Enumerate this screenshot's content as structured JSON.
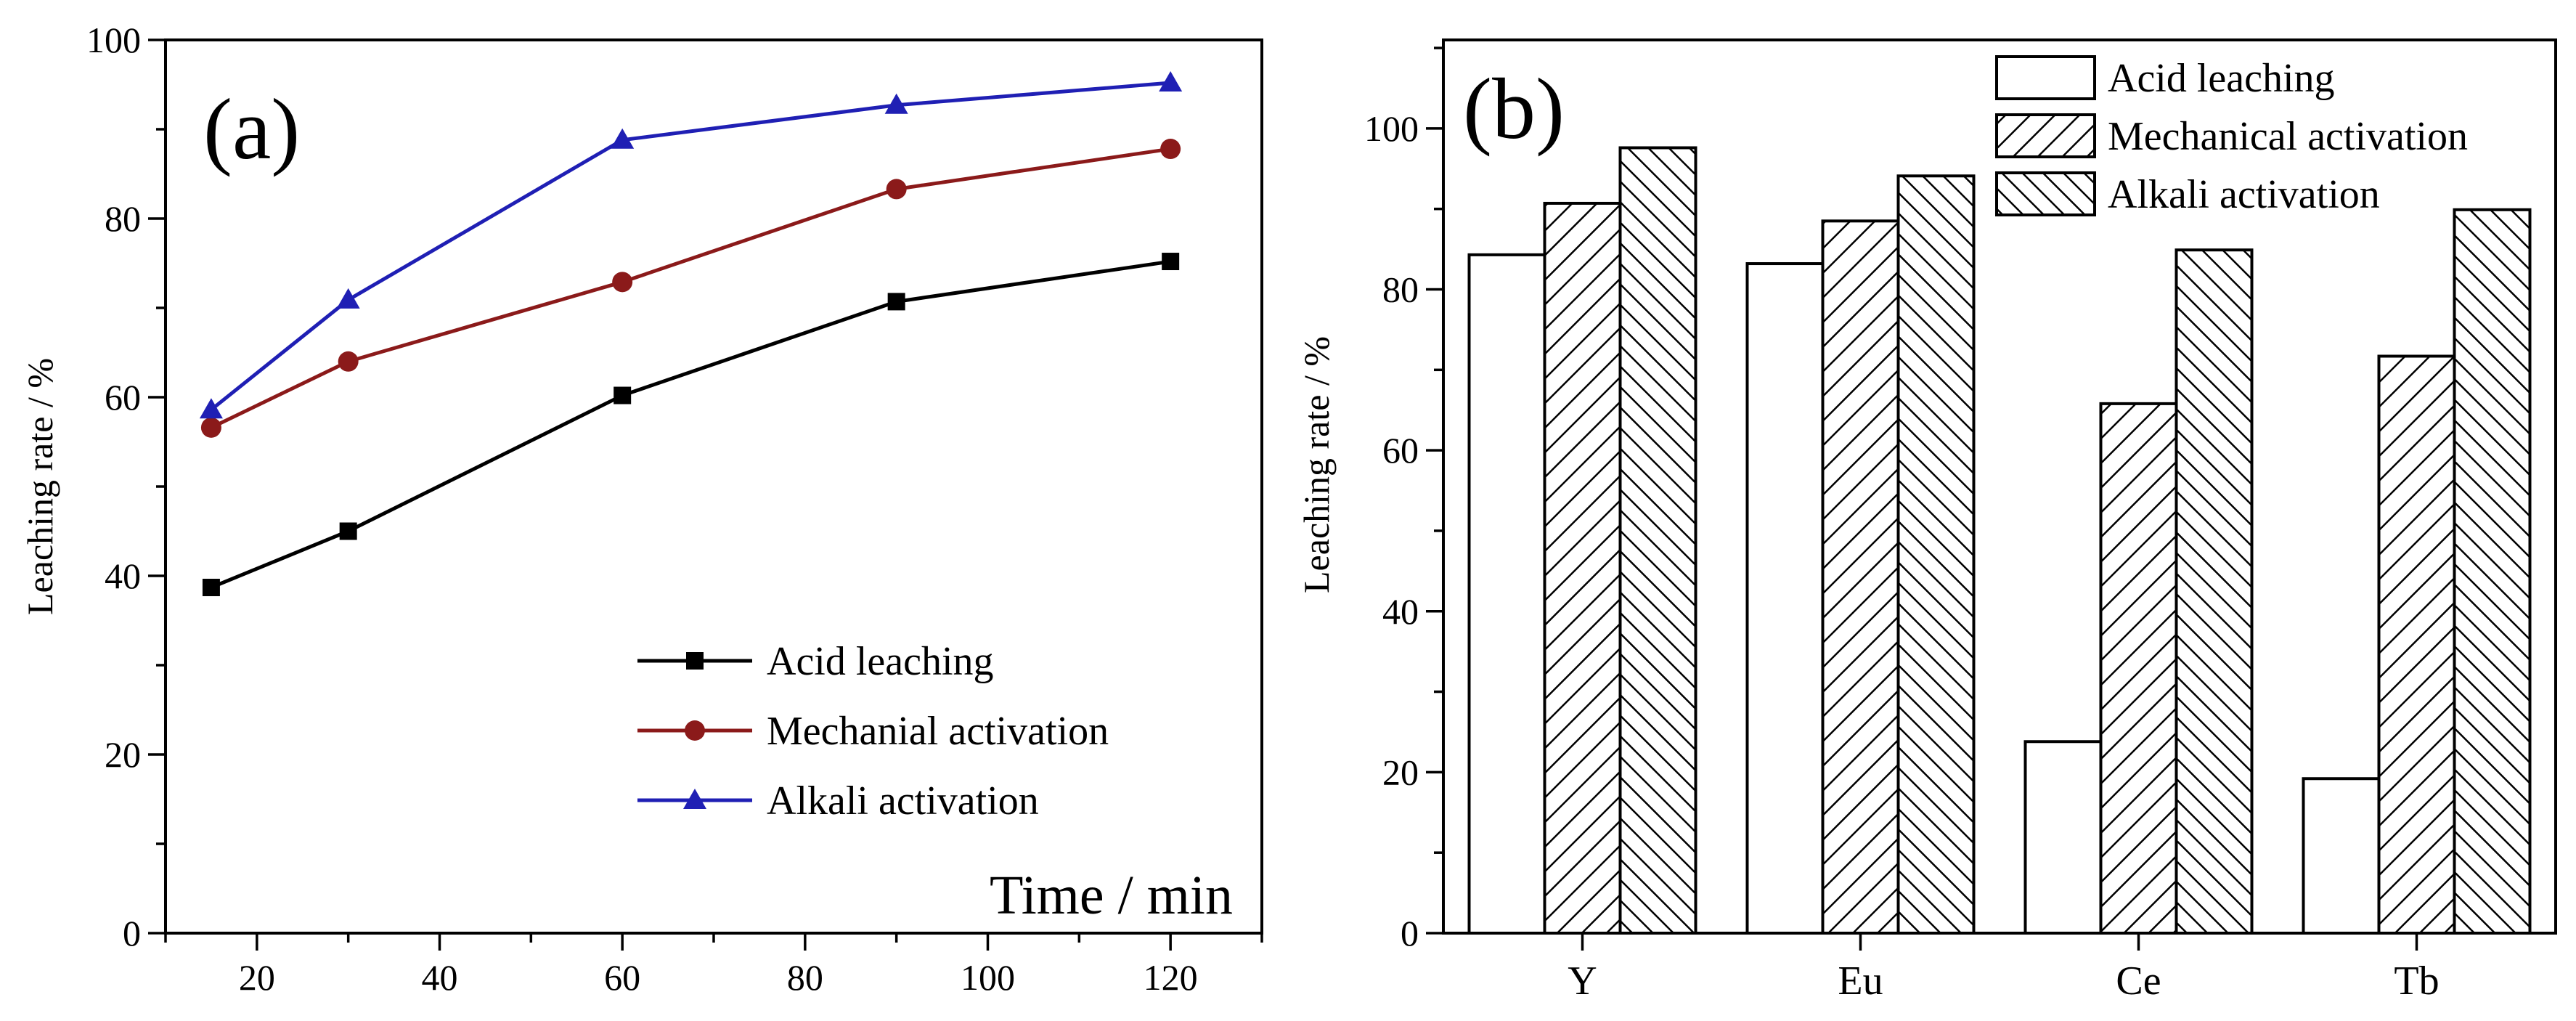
{
  "chart_data": [
    {
      "panel": "(a)",
      "type": "line",
      "xlabel": "Time / min",
      "ylabel": "Leaching rate / %",
      "xlim": [
        10,
        130
      ],
      "ylim": [
        0,
        100
      ],
      "xticks": [
        20,
        40,
        60,
        80,
        100,
        120
      ],
      "yticks": [
        0,
        20,
        40,
        60,
        80,
        100
      ],
      "legend_position": "bottom-right",
      "x": [
        15,
        30,
        60,
        90,
        120
      ],
      "series": [
        {
          "name": "Acid leaching",
          "marker": "square",
          "color": "#000000",
          "values": [
            38.7,
            45.0,
            60.2,
            70.7,
            75.2
          ]
        },
        {
          "name": "Mechanial activation",
          "marker": "circle",
          "color": "#8b1a1a",
          "values": [
            56.6,
            64.0,
            72.9,
            83.3,
            87.8
          ]
        },
        {
          "name": "Alkali activation",
          "marker": "triangle",
          "color": "#1f1fb4",
          "values": [
            58.6,
            70.9,
            88.8,
            92.7,
            95.2
          ]
        }
      ]
    },
    {
      "panel": "(b)",
      "type": "bar",
      "xlabel": "",
      "ylabel": "Leaching rate / %",
      "ylim": [
        0,
        111
      ],
      "yticks": [
        0,
        20,
        40,
        60,
        80,
        100
      ],
      "legend_position": "top-right",
      "categories": [
        "Y",
        "Eu",
        "Ce",
        "Tb"
      ],
      "series": [
        {
          "name": "Acid leaching",
          "pattern": "none",
          "values": [
            84.3,
            83.2,
            23.8,
            19.2
          ]
        },
        {
          "name": "Mechanical activation",
          "pattern": "forward-hatch",
          "values": [
            90.7,
            88.5,
            65.8,
            71.7
          ]
        },
        {
          "name": "Alkali activation",
          "pattern": "back-hatch",
          "values": [
            97.6,
            94.1,
            84.9,
            89.9
          ]
        }
      ]
    }
  ]
}
